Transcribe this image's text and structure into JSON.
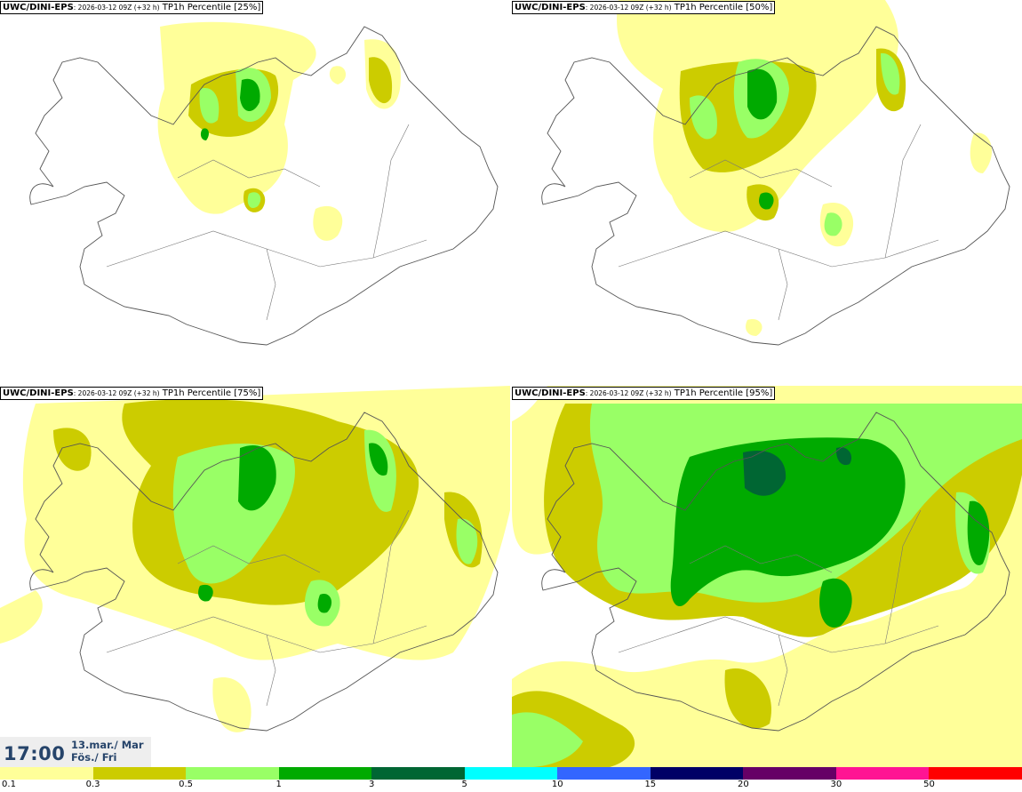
{
  "panels": [
    {
      "model": "UWC/DINI-EPS",
      "run": ": 2026-03-12 09Z (+32 h)",
      "field": "TP1h Percentile [25%]"
    },
    {
      "model": "UWC/DINI-EPS",
      "run": ": 2026-03-12 09Z (+32 h)",
      "field": "TP1h Percentile [50%]"
    },
    {
      "model": "UWC/DINI-EPS",
      "run": ": 2026-03-12 09Z (+32 h)",
      "field": "TP1h Percentile [75%]"
    },
    {
      "model": "UWC/DINI-EPS",
      "run": ": 2026-03-12 09Z (+32 h)",
      "field": "TP1h Percentile [95%]"
    }
  ],
  "valid_time": {
    "time": "17:00",
    "date_line1": "13.mar./ Mar",
    "date_line2": "Fös./ Fri"
  },
  "legend": {
    "colors": [
      "#ffff99",
      "#cccc00",
      "#99ff66",
      "#00aa00",
      "#006633",
      "#00ffff",
      "#3366ff",
      "#000066",
      "#660066",
      "#ff1493",
      "#ff0000"
    ],
    "labels": [
      "0.1",
      "0.3",
      "0.5",
      "1",
      "3",
      "5",
      "10",
      "15",
      "20",
      "30",
      "50"
    ]
  },
  "colors": {
    "level_01": "#ffff99",
    "level_03": "#cccc00",
    "level_05": "#99ff66",
    "level_1": "#00aa00",
    "level_3": "#006633",
    "coast": "#555555"
  }
}
